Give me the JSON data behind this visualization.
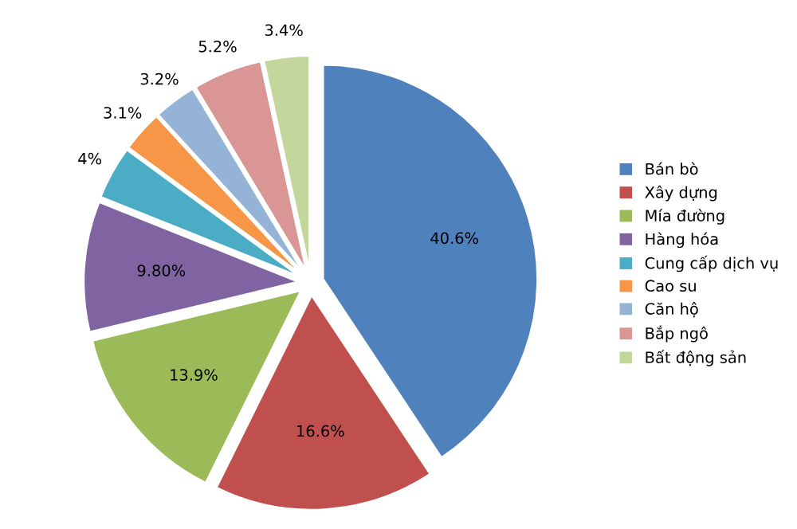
{
  "chart_data": {
    "type": "pie",
    "categories": [
      "Bán bò",
      "Xây dựng",
      "Mía đường",
      "Hàng hóa",
      "Cung cấp dịch vụ",
      "Cao su",
      "Căn hộ",
      "Bắp ngô",
      "Bất động sản"
    ],
    "values": [
      40.6,
      16.6,
      13.9,
      9.8,
      4,
      3.1,
      3.2,
      5.2,
      3.4
    ],
    "value_labels": [
      "40.6%",
      "16.6%",
      "13.9%",
      "9.80%",
      "4%",
      "3.1%",
      "3.2%",
      "5.2%",
      "3.4%"
    ],
    "colors": [
      "#4f81bd",
      "#c0504d",
      "#9bbb59",
      "#8064a2",
      "#4bacc6",
      "#f79646",
      "#95b3d7",
      "#d99694",
      "#c3d69b"
    ],
    "legend": "right"
  }
}
